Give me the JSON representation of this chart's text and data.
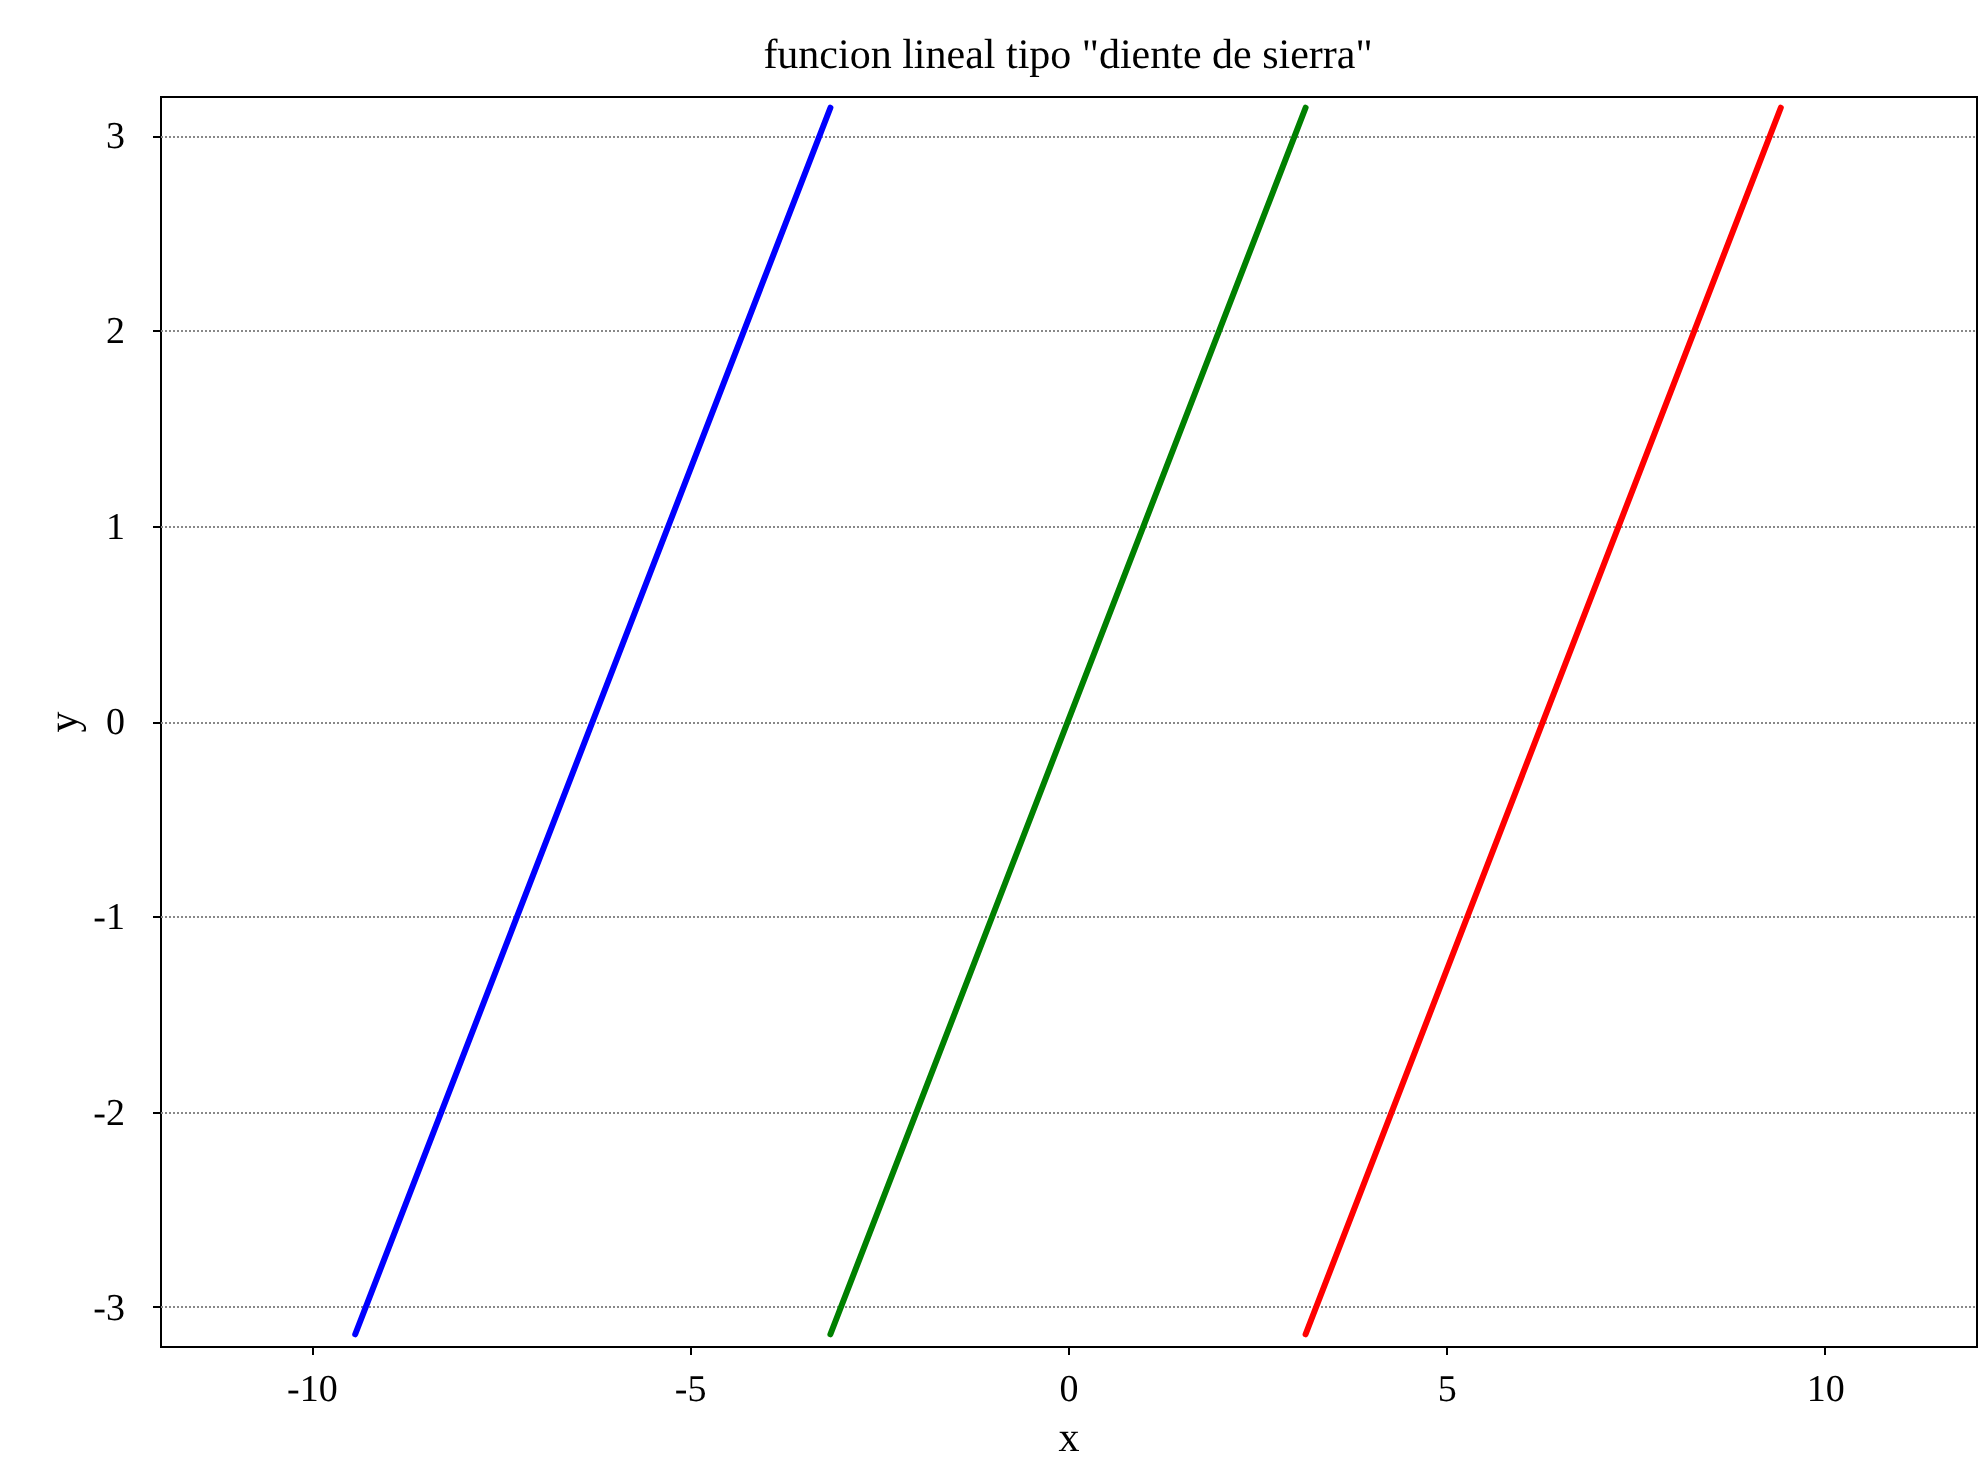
{
  "chart_data": {
    "type": "line",
    "title": "funcion lineal tipo \"diente de sierra\"",
    "xlabel": "x",
    "ylabel": "y",
    "xlim": [
      -12,
      12
    ],
    "xticks": [
      -10,
      -5,
      0,
      5,
      10
    ],
    "ylim": [
      -3.2,
      3.2
    ],
    "yticks": [
      -3,
      -2,
      -1,
      0,
      1,
      2,
      3
    ],
    "grid": "y",
    "line_style": "solid",
    "series": [
      {
        "color": "#0000ff",
        "x": [
          -9.42,
          -3.14
        ],
        "values": [
          -3.14,
          3.14
        ]
      },
      {
        "color": "#008000",
        "x": [
          -3.14,
          3.14
        ],
        "values": [
          -3.14,
          3.14
        ]
      },
      {
        "color": "#ff0000",
        "x": [
          3.14,
          9.42
        ],
        "values": [
          -3.14,
          3.14
        ]
      }
    ]
  }
}
